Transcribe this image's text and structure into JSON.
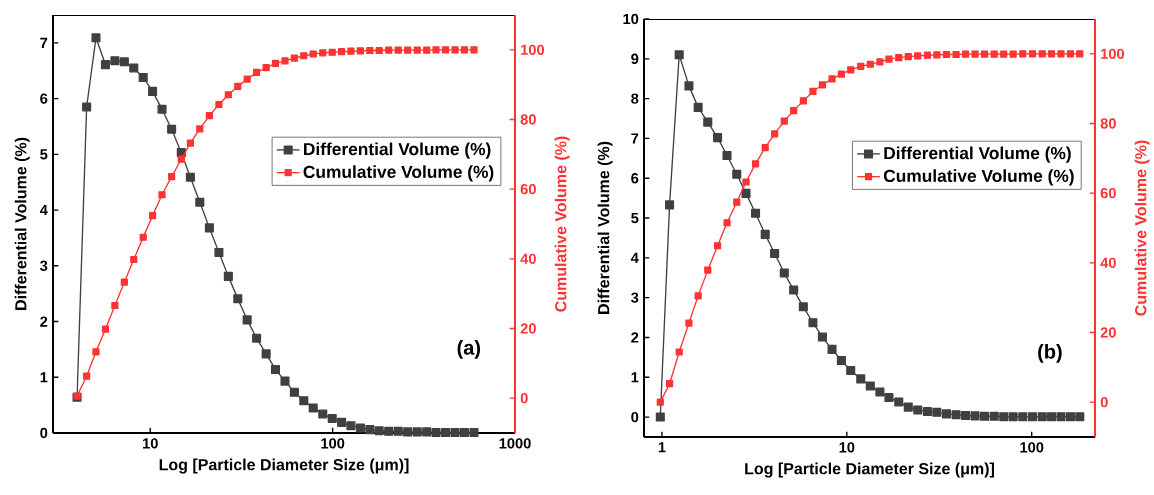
{
  "chart_data": [
    {
      "type": "line",
      "log": "x",
      "marker": "square",
      "line_style": "solid",
      "grid": false,
      "legend": "right",
      "xlabel": "Log [Particle Diameter Size (μm)]",
      "ylabel": "Differential Volume (%)",
      "y2label": "Cumulative Volume (%)",
      "annotations": [
        "(a)"
      ],
      "xlim": [
        2.93,
        1000
      ],
      "xticks": [
        10,
        100,
        1000
      ],
      "ylim": [
        0,
        7.5
      ],
      "yticks": [
        0,
        1,
        2,
        3,
        4,
        5,
        6,
        7
      ],
      "y2lim": [
        -10,
        110
      ],
      "y2ticks": [
        0,
        20,
        40,
        60,
        80,
        100
      ],
      "x": [
        3.97,
        4.48,
        5.04,
        5.68,
        6.4,
        7.21,
        8.12,
        9.15,
        10.3,
        11.6,
        13.1,
        14.8,
        16.6,
        18.7,
        21.1,
        23.8,
        26.8,
        30.2,
        34.0,
        38.3,
        43.2,
        48.6,
        54.8,
        61.7,
        69.5,
        78.3,
        88.3,
        99.5,
        112,
        126,
        142,
        160,
        180,
        203,
        229,
        258,
        291,
        328,
        369,
        416,
        469,
        528,
        596
      ],
      "series": [
        {
          "name": "Differential Volume (%)",
          "color": "#404040",
          "values": [
            0.64,
            5.85,
            7.09,
            6.61,
            6.68,
            6.66,
            6.55,
            6.38,
            6.13,
            5.81,
            5.45,
            5.03,
            4.59,
            4.14,
            3.68,
            3.24,
            2.81,
            2.41,
            2.03,
            1.7,
            1.42,
            1.14,
            0.93,
            0.73,
            0.58,
            0.45,
            0.34,
            0.26,
            0.19,
            0.13,
            0.09,
            0.06,
            0.04,
            0.03,
            0.03,
            0.02,
            0.02,
            0.02,
            0.01,
            0.01,
            0.01,
            0.01,
            0.01
          ]
        },
        {
          "name": "Cumulative Volume (%)",
          "color": "#ff3333",
          "axis": "y2",
          "values": [
            0.6,
            6.3,
            13.3,
            19.8,
            26.6,
            33.3,
            39.8,
            46.2,
            52.4,
            58.4,
            63.6,
            68.6,
            73.2,
            77.3,
            81.1,
            84.3,
            87.1,
            89.5,
            91.6,
            93.5,
            94.9,
            96.1,
            96.8,
            97.6,
            98.3,
            98.8,
            99.1,
            99.3,
            99.5,
            99.6,
            99.7,
            99.8,
            99.8,
            99.9,
            99.9,
            99.9,
            99.9,
            99.9,
            100,
            100,
            100,
            100,
            100
          ]
        }
      ]
    },
    {
      "type": "line",
      "log": "x",
      "marker": "square",
      "line_style": "solid",
      "grid": false,
      "legend": "right",
      "xlabel": "Log [Particle Diameter Size (μm)]",
      "ylabel": "Differential Volume (%)",
      "y2label": "Cumulative Volume (%)",
      "annotations": [
        "(b)"
      ],
      "xlim": [
        0.8,
        220
      ],
      "xticks": [
        1,
        10,
        100
      ],
      "ylim": [
        -0.5,
        10
      ],
      "yticks": [
        0,
        1,
        2,
        3,
        4,
        5,
        6,
        7,
        8,
        9,
        10
      ],
      "y2lim": [
        -10,
        110
      ],
      "y2ticks": [
        0,
        20,
        40,
        60,
        80,
        100
      ],
      "x": [
        0.98,
        1.1,
        1.24,
        1.4,
        1.57,
        1.77,
        2.0,
        2.25,
        2.54,
        2.85,
        3.21,
        3.62,
        4.07,
        4.59,
        5.16,
        5.82,
        6.56,
        7.38,
        8.32,
        9.35,
        10.5,
        11.9,
        13.4,
        15.1,
        16.9,
        19.1,
        21.5,
        24.2,
        27.3,
        30.7,
        34.6,
        39.0,
        43.9,
        49.4,
        55.6,
        62.7,
        70.6,
        79.4,
        89.5,
        101,
        114,
        128,
        144,
        162,
        182
      ],
      "series": [
        {
          "name": "Differential Volume (%)",
          "color": "#404040",
          "values": [
            0.0,
            5.33,
            9.1,
            8.32,
            7.78,
            7.41,
            7.02,
            6.57,
            6.1,
            5.62,
            5.12,
            4.59,
            4.11,
            3.62,
            3.19,
            2.77,
            2.37,
            2.01,
            1.7,
            1.42,
            1.17,
            0.96,
            0.78,
            0.63,
            0.49,
            0.38,
            0.25,
            0.18,
            0.14,
            0.12,
            0.08,
            0.06,
            0.04,
            0.03,
            0.02,
            0.02,
            0.01,
            0.01,
            0.01,
            0.01,
            0.01,
            0.01,
            0.01,
            0.01,
            0.01
          ]
        },
        {
          "name": "Cumulative Volume (%)",
          "color": "#ff3333",
          "axis": "y2",
          "values": [
            0.0,
            5.3,
            14.4,
            22.7,
            30.5,
            37.9,
            44.9,
            51.5,
            57.4,
            63.2,
            68.4,
            73.1,
            77.0,
            80.7,
            83.7,
            86.5,
            89.2,
            91.1,
            92.8,
            94.2,
            95.4,
            96.4,
            97.0,
            97.7,
            98.5,
            98.9,
            99.2,
            99.4,
            99.6,
            99.7,
            99.8,
            99.8,
            99.9,
            99.9,
            99.9,
            99.9,
            99.9,
            99.9,
            100,
            100,
            100,
            100,
            100,
            100,
            100
          ]
        }
      ]
    }
  ]
}
